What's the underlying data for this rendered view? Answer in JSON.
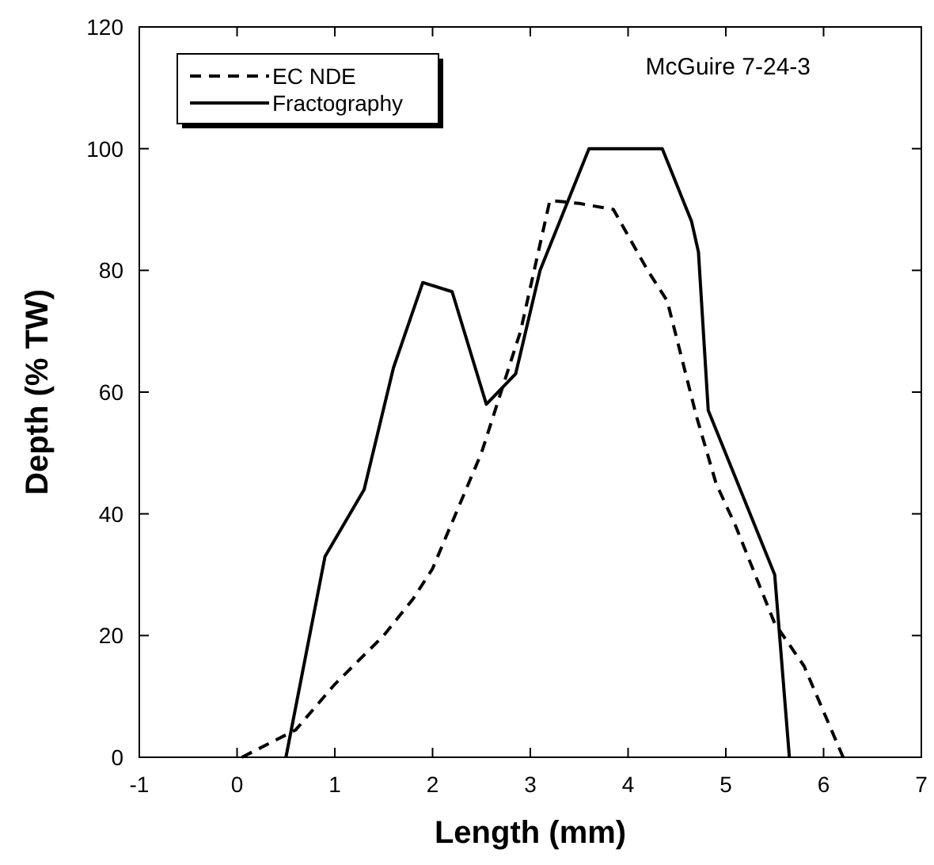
{
  "chart_data": {
    "type": "line",
    "xlabel": "Length (mm)",
    "ylabel": "Depth (% TW)",
    "xlim": [
      -1,
      7
    ],
    "xticks": [
      -1,
      0,
      1,
      2,
      3,
      4,
      5,
      6,
      7
    ],
    "ylim": [
      0,
      120
    ],
    "yticks": [
      0,
      20,
      40,
      60,
      80,
      100,
      120
    ],
    "grid": false,
    "legend": "top left",
    "annotations": [
      "McGuire 7-24-3"
    ],
    "series": [
      {
        "name": "EC NDE",
        "color": "#000000",
        "line_style": "dashed",
        "x": [
          0.05,
          0.6,
          1.0,
          1.5,
          1.8,
          2.0,
          2.5,
          2.9,
          3.2,
          3.5,
          3.85,
          4.2,
          4.4,
          4.7,
          4.9,
          5.1,
          5.5,
          5.8,
          6.2
        ],
        "values": [
          0,
          4.5,
          12,
          20,
          26,
          31,
          50,
          70,
          91.5,
          91,
          90,
          80,
          75,
          56,
          45,
          38,
          22,
          15,
          0
        ]
      },
      {
        "name": "Fractography",
        "color": "#000000",
        "line_style": "solid",
        "x": [
          0.5,
          0.9,
          1.3,
          1.6,
          1.9,
          2.2,
          2.55,
          2.85,
          3.1,
          3.6,
          4.35,
          4.65,
          4.72,
          4.82,
          5.5,
          5.65
        ],
        "values": [
          0,
          33,
          44,
          64,
          78,
          76.5,
          58,
          63,
          80,
          100,
          100,
          88,
          83,
          57,
          30,
          0
        ]
      }
    ]
  }
}
